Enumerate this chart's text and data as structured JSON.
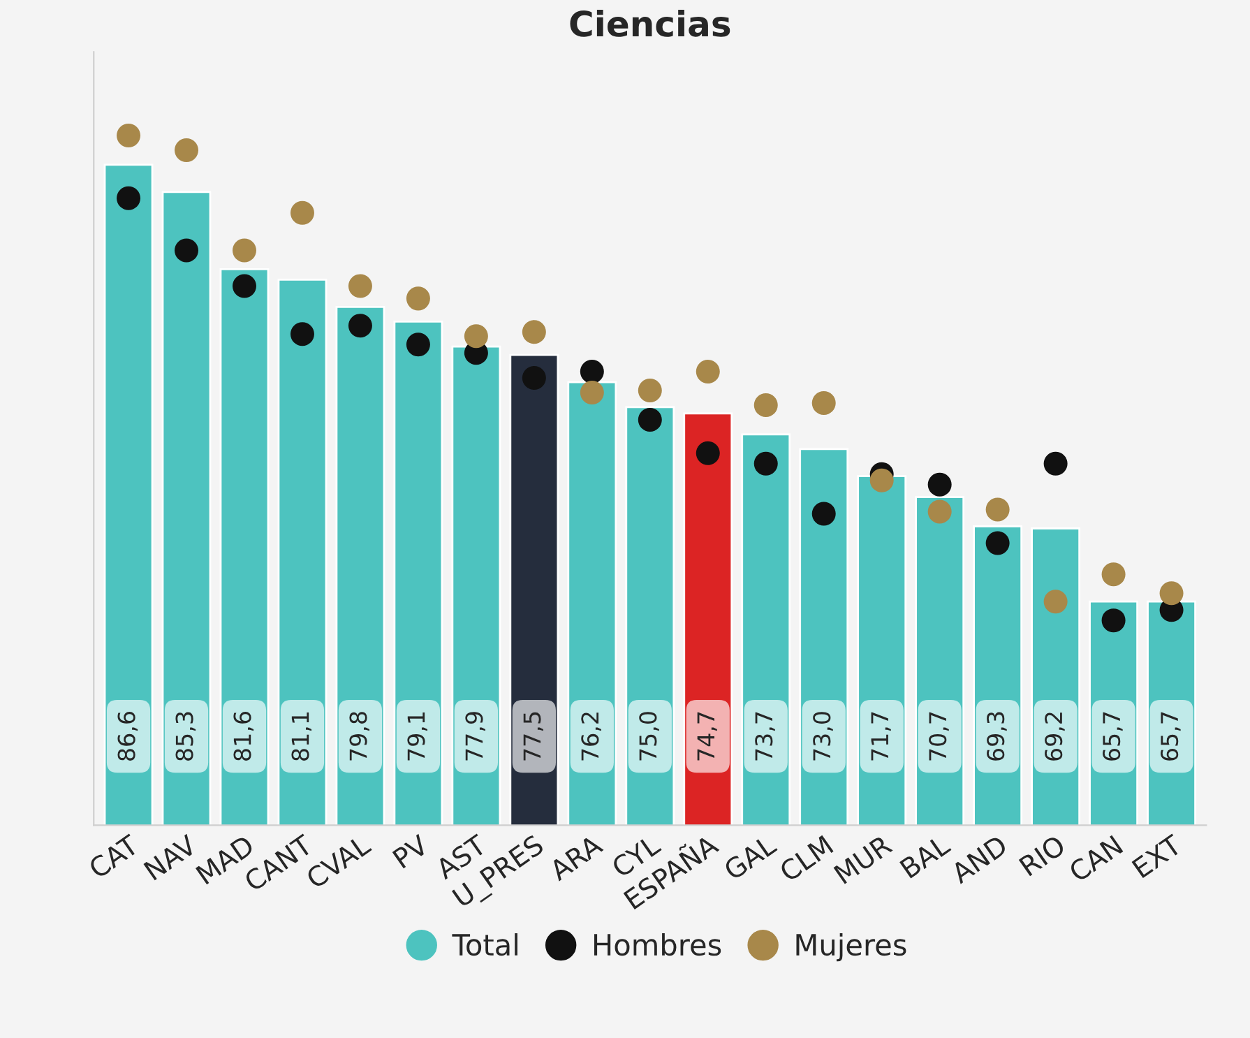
{
  "chart_data": {
    "type": "bar",
    "title": "Ciencias",
    "categories": [
      "CAT",
      "NAV",
      "MAD",
      "CANT",
      "CVAL",
      "PV",
      "AST",
      "U_PRES",
      "ARA",
      "CYL",
      "ESPAÑA",
      "GAL",
      "CLM",
      "MUR",
      "BAL",
      "AND",
      "RIO",
      "CAN",
      "EXT"
    ],
    "series": [
      {
        "name": "Total",
        "color": "#4dc3bf",
        "colors": [
          "#4dc3bf",
          "#4dc3bf",
          "#4dc3bf",
          "#4dc3bf",
          "#4dc3bf",
          "#4dc3bf",
          "#4dc3bf",
          "#252d3d",
          "#4dc3bf",
          "#4dc3bf",
          "#dc2424",
          "#4dc3bf",
          "#4dc3bf",
          "#4dc3bf",
          "#4dc3bf",
          "#4dc3bf",
          "#4dc3bf",
          "#4dc3bf",
          "#4dc3bf"
        ],
        "values": [
          86.6,
          85.3,
          81.6,
          81.1,
          79.8,
          79.1,
          77.9,
          77.5,
          76.2,
          75.0,
          74.7,
          73.7,
          73.0,
          71.7,
          70.7,
          69.3,
          69.2,
          65.7,
          65.7
        ],
        "value_labels": [
          "86,6",
          "85,3",
          "81,6",
          "81,1",
          "79,8",
          "79,1",
          "77,9",
          "77,5",
          "76,2",
          "75,0",
          "74,7",
          "73,7",
          "73,0",
          "71,7",
          "70,7",
          "69,3",
          "69,2",
          "65,7",
          "65,7"
        ]
      },
      {
        "name": "Hombres",
        "type": "scatter",
        "color": "#111111",
        "values": [
          85.0,
          82.5,
          80.8,
          78.5,
          78.9,
          78.0,
          77.6,
          76.4,
          76.7,
          74.4,
          72.8,
          72.3,
          69.9,
          71.8,
          71.3,
          68.5,
          72.3,
          64.8,
          65.3
        ]
      },
      {
        "name": "Mujeres",
        "type": "scatter",
        "color": "#a8884a",
        "values": [
          88.0,
          87.3,
          82.5,
          84.3,
          80.8,
          80.2,
          78.4,
          78.6,
          75.7,
          75.8,
          76.7,
          75.1,
          75.2,
          71.5,
          70.0,
          70.1,
          65.7,
          67.0,
          66.1
        ]
      }
    ],
    "ylim": [
      55,
      92
    ],
    "tick_labels": "x",
    "grid": false,
    "legend": "bottom",
    "marker": "circle"
  }
}
